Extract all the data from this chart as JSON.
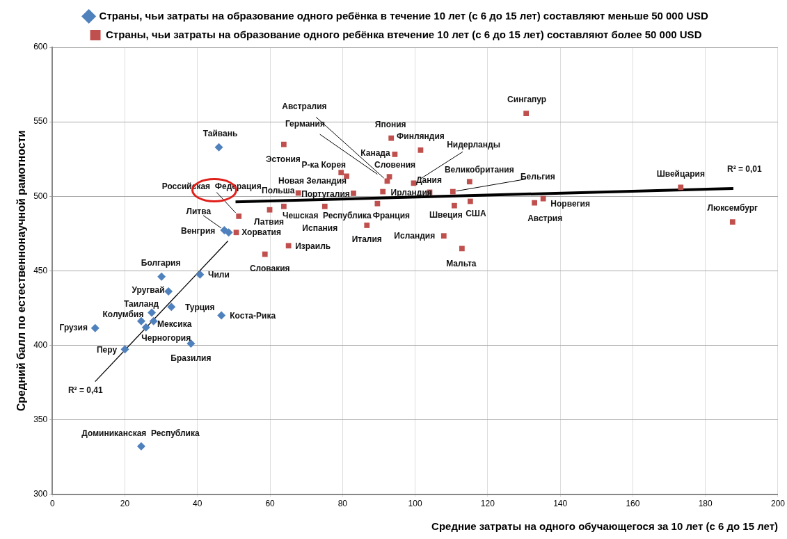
{
  "chart_data": {
    "type": "scatter",
    "xlabel": "Средние затраты на одного обучающегося за 10 лет (с 6 до 15 лет)",
    "ylabel": "Средний балл по естественнонаучной рамотности",
    "xlim": [
      0,
      200
    ],
    "xticks": [
      0,
      20,
      40,
      60,
      80,
      100,
      120,
      140,
      160,
      180,
      200
    ],
    "ylim": [
      300,
      600
    ],
    "yticks": [
      300,
      350,
      400,
      450,
      500,
      550,
      600
    ],
    "grid": true,
    "legend": "top",
    "series": [
      {
        "name": "Страны, чьи затраты на образование одного ребёнка в течение 10 лет (с 6 до 15 лет) составляют меньше 50 000 USD",
        "color": "#4f81bd",
        "marker": "diamond",
        "x": [
          45.9,
          47.4,
          48.6,
          30.1,
          40.7,
          32.0,
          32.8,
          27.4,
          24.5,
          27.9,
          25.8,
          11.8,
          46.6,
          38.2,
          20.0,
          24.5
        ],
        "values": [
          532.9,
          477.2,
          475.7,
          446.0,
          447.4,
          436.1,
          425.7,
          421.9,
          416.2,
          416.2,
          412.0,
          411.5,
          420.0,
          401.1,
          397.3,
          332.1
        ],
        "value_labels": [
          "Тайвань",
          "Литва",
          "Венгрия",
          "Болгария",
          "Чили",
          "Уругвай",
          "Турция",
          "Таиланд",
          "Колумбия",
          "Мексика",
          "Черногория",
          "Грузия",
          "Коста-Рика",
          "Бразилия",
          "Перу",
          "Доминиканская  Республика"
        ]
      },
      {
        "name": "Страны, чьи затраты на образование одного ребёнка втечение 10 лет (с 6 до 15 лет) составляют более 50 000 USD",
        "color": "#c0504d",
        "marker": "square",
        "x": [
          51.4,
          50.7,
          63.8,
          59.9,
          63.8,
          58.6,
          65.1,
          67.8,
          79.6,
          81.1,
          83.0,
          75.1,
          93.4,
          101.5,
          94.4,
          92.9,
          92.3,
          91.1,
          89.6,
          86.7,
          99.6,
          104.0,
          110.4,
          115.0,
          110.8,
          115.2,
          107.9,
          112.9,
          130.6,
          132.9,
          135.3,
          173.2,
          187.5
        ],
        "values": [
          486.6,
          475.7,
          534.8,
          490.9,
          493.2,
          461.1,
          466.8,
          502.2,
          515.9,
          513.5,
          502.0,
          493.2,
          539.0,
          531.0,
          528.2,
          513.1,
          510.2,
          503.1,
          495.1,
          480.5,
          508.8,
          502.7,
          503.1,
          509.8,
          493.7,
          496.6,
          473.4,
          464.9,
          555.6,
          495.6,
          498.4,
          506.0,
          482.8
        ],
        "value_labels": [
          "Российская  Федерация",
          "Хорватия",
          "Эстония",
          "Латвия",
          "Чешская  Республика",
          "Словакия",
          "Израиль",
          "Польша",
          "Р-ка Корея",
          "Новая Зеландия",
          "Португалия",
          "Испания",
          "Япония",
          "Финляндия",
          "Канада",
          "Словения",
          "Германия",
          "Ирландия",
          "Франция",
          "Италия",
          "Нидерланды",
          "Дания",
          null,
          "Великобритания",
          "Швеция",
          "США",
          "Исландия",
          "Мальта",
          "Сингапур",
          "Австрия",
          "Норвегия",
          "Швейцария",
          "Люксембург"
        ]
      },
      {
        "type": "line",
        "color": "#000000",
        "marker": "none",
        "x": [
          11.8,
          48.4
        ],
        "values": [
          375.6,
          470.0
        ]
      },
      {
        "type": "line",
        "color": "#000000",
        "marker": "none",
        "x": [
          50.5,
          187.7
        ],
        "values": [
          496.2,
          505.2
        ]
      }
    ],
    "annotations": [
      {
        "text": "R² = 0,41",
        "x": 11.8,
        "y": 375.6
      },
      {
        "text": "R² = 0,01",
        "x": 187.7,
        "y": 505.2
      },
      {
        "text": "Австралия",
        "x": 92.3,
        "y": 510.2
      },
      {
        "text": "Бельгия",
        "x": 110.4,
        "y": 503.1
      }
    ]
  }
}
